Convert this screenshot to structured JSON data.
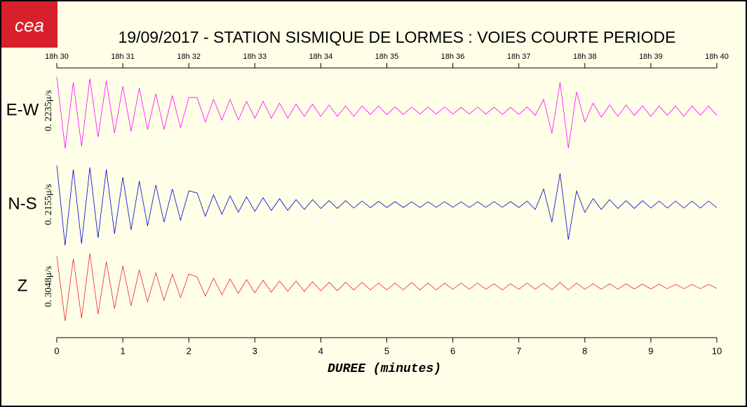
{
  "chart_data": {
    "type": "line",
    "logo": "cea",
    "title": "19/09/2017  -  STATION SISMIQUE DE LORMES : VOIES COURTE PERIODE",
    "xlabel": "DUREE (minutes)",
    "xlim": [
      0,
      10
    ],
    "xticks": [
      0,
      1,
      2,
      3,
      4,
      5,
      6,
      7,
      8,
      9,
      10
    ],
    "top_xticks": [
      {
        "value": 0,
        "label": "18h 30"
      },
      {
        "value": 1,
        "label": "18h 31"
      },
      {
        "value": 2,
        "label": "18h 32"
      },
      {
        "value": 3,
        "label": "18h 33"
      },
      {
        "value": 4,
        "label": "18h 34"
      },
      {
        "value": 5,
        "label": "18h 35"
      },
      {
        "value": 6,
        "label": "18h 36"
      },
      {
        "value": 7,
        "label": "18h 37"
      },
      {
        "value": 8,
        "label": "18h 38"
      },
      {
        "value": 9,
        "label": "18h 39"
      },
      {
        "value": 10,
        "label": "18h 40"
      }
    ],
    "x": [
      0,
      0.125,
      0.25,
      0.375,
      0.5,
      0.625,
      0.75,
      0.875,
      1,
      1.125,
      1.25,
      1.375,
      1.5,
      1.625,
      1.75,
      1.875,
      2,
      2.125,
      2.25,
      2.375,
      2.5,
      2.625,
      2.75,
      2.875,
      3,
      3.125,
      3.25,
      3.375,
      3.5,
      3.625,
      3.75,
      3.875,
      4,
      4.125,
      4.25,
      4.375,
      4.5,
      4.625,
      4.75,
      4.875,
      5,
      5.125,
      5.25,
      5.375,
      5.5,
      5.625,
      5.75,
      5.875,
      6,
      6.125,
      6.25,
      6.375,
      6.5,
      6.625,
      6.75,
      6.875,
      7,
      7.125,
      7.25,
      7.375,
      7.5,
      7.625,
      7.75,
      7.875,
      8,
      8.125,
      8.25,
      8.375,
      8.5,
      8.625,
      8.75,
      8.875,
      9,
      9.125,
      9.25,
      9.375,
      9.5,
      9.625,
      9.75,
      9.875,
      10
    ],
    "series": [
      {
        "name": "E-W",
        "scale_label": "0. 2235μ/s",
        "color": "#ff00ff",
        "ylim": [
          -0.2235,
          0.2235
        ],
        "values": [
          0.18,
          -0.2,
          0.15,
          -0.19,
          0.17,
          -0.14,
          0.16,
          -0.12,
          0.13,
          -0.11,
          0.12,
          -0.1,
          0.09,
          -0.1,
          0.08,
          -0.09,
          0.07,
          0.07,
          -0.06,
          0.06,
          -0.05,
          0.06,
          -0.05,
          0.05,
          -0.04,
          0.05,
          -0.04,
          0.04,
          -0.04,
          0.035,
          -0.03,
          0.035,
          -0.03,
          0.03,
          -0.03,
          0.025,
          -0.03,
          0.025,
          -0.02,
          0.025,
          -0.02,
          0.02,
          -0.02,
          0.02,
          -0.018,
          0.02,
          -0.018,
          0.02,
          -0.018,
          0.018,
          -0.018,
          0.02,
          -0.018,
          0.018,
          -0.02,
          0.018,
          -0.02,
          0.02,
          -0.025,
          0.06,
          -0.12,
          0.15,
          -0.2,
          0.1,
          -0.06,
          0.04,
          -0.035,
          0.03,
          -0.03,
          0.03,
          -0.025,
          0.025,
          -0.03,
          0.025,
          -0.025,
          0.025,
          -0.03,
          0.025,
          -0.025,
          0.025,
          -0.025
        ]
      },
      {
        "name": "N-S",
        "scale_label": "0. 2155μ/s",
        "color": "#0000cc",
        "ylim": [
          -0.2155,
          0.2155
        ],
        "values": [
          0.2,
          -0.21,
          0.18,
          -0.2,
          0.19,
          -0.17,
          0.18,
          -0.15,
          0.14,
          -0.13,
          0.12,
          -0.11,
          0.1,
          -0.09,
          0.08,
          -0.08,
          0.07,
          0.06,
          -0.06,
          0.05,
          -0.05,
          0.045,
          -0.04,
          0.04,
          -0.035,
          0.035,
          -0.03,
          0.03,
          -0.03,
          0.025,
          -0.025,
          0.025,
          -0.02,
          0.02,
          -0.02,
          0.02,
          -0.018,
          0.018,
          -0.016,
          0.016,
          -0.015,
          0.015,
          -0.015,
          0.014,
          -0.015,
          0.014,
          -0.014,
          0.015,
          -0.014,
          0.014,
          -0.015,
          0.014,
          -0.014,
          0.015,
          -0.014,
          0.015,
          -0.015,
          0.018,
          -0.025,
          0.08,
          -0.09,
          0.16,
          -0.18,
          0.07,
          -0.04,
          0.03,
          -0.025,
          0.025,
          -0.02,
          0.02,
          -0.02,
          0.02,
          -0.018,
          0.018,
          -0.018,
          0.018,
          -0.018,
          0.018,
          -0.018,
          0.018,
          -0.016
        ]
      },
      {
        "name": "Z",
        "scale_label": "0. 3048μ/s",
        "color": "#ee2222",
        "ylim": [
          -0.3048,
          0.3048
        ],
        "values": [
          0.22,
          -0.25,
          0.2,
          -0.23,
          0.24,
          -0.2,
          0.18,
          -0.16,
          0.15,
          -0.14,
          0.12,
          -0.11,
          0.1,
          -0.1,
          0.09,
          -0.08,
          0.09,
          0.07,
          -0.07,
          0.06,
          -0.06,
          0.055,
          -0.05,
          0.05,
          -0.045,
          0.045,
          -0.04,
          0.04,
          -0.035,
          0.04,
          -0.035,
          0.035,
          -0.03,
          0.03,
          -0.03,
          0.03,
          -0.025,
          0.03,
          -0.025,
          0.025,
          -0.025,
          0.025,
          -0.025,
          0.03,
          -0.025,
          0.025,
          -0.025,
          0.025,
          -0.02,
          0.025,
          -0.02,
          0.025,
          -0.02,
          0.02,
          -0.025,
          0.02,
          -0.02,
          0.025,
          -0.02,
          0.025,
          -0.025,
          0.03,
          -0.025,
          0.025,
          -0.02,
          0.02,
          -0.02,
          0.02,
          -0.02,
          0.02,
          -0.018,
          0.018,
          -0.018,
          0.018,
          -0.016,
          0.016,
          -0.016,
          0.016,
          -0.016,
          0.016,
          -0.014
        ]
      }
    ]
  }
}
